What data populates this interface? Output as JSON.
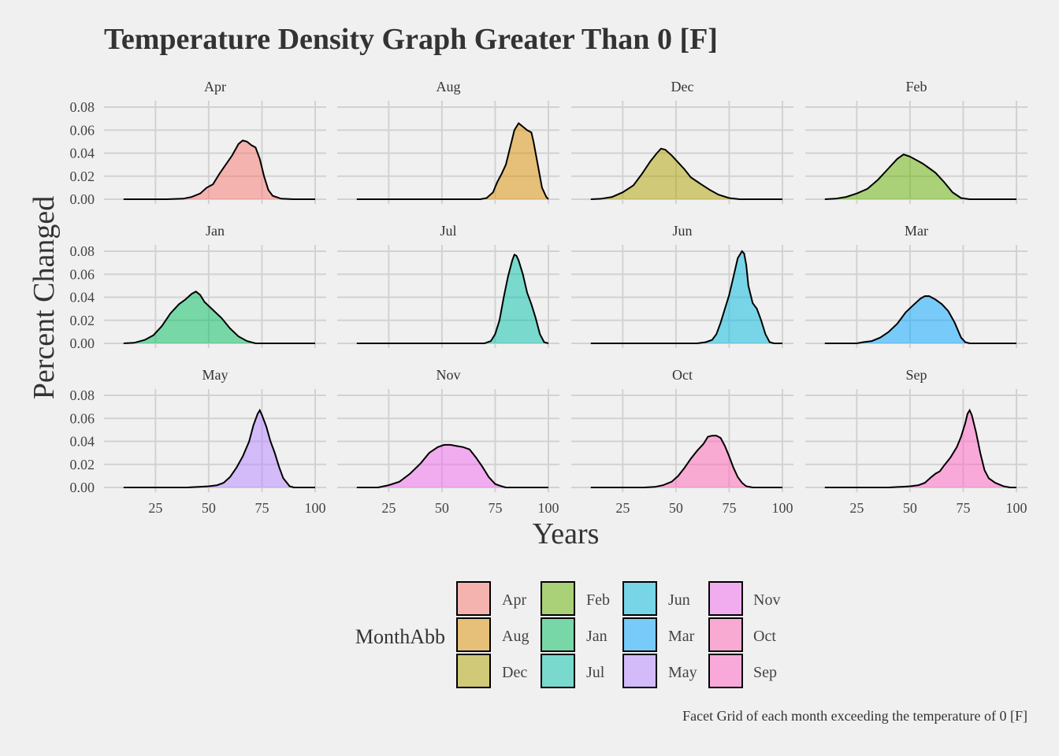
{
  "chart_data": {
    "type": "area",
    "title": "Temperature Density Graph Greater Than 0 [F]",
    "xlabel": "Years",
    "ylabel": "Percent Changed",
    "caption": "Facet Grid of each month exceeding the temperature of 0 [F]",
    "xlim": [
      6,
      100
    ],
    "ylim": [
      0,
      0.08
    ],
    "x_ticks": [
      25,
      50,
      75,
      100
    ],
    "y_ticks": [
      0.0,
      0.02,
      0.04,
      0.06,
      0.08
    ],
    "y_tick_labels": [
      "0.00",
      "0.02",
      "0.04",
      "0.06",
      "0.08"
    ],
    "grid": true,
    "legend": {
      "title": "MonthAbb",
      "placement": "bottom",
      "entries": [
        "Apr",
        "Aug",
        "Dec",
        "Feb",
        "Jan",
        "Jul",
        "Jun",
        "Mar",
        "May",
        "Nov",
        "Oct",
        "Sep"
      ]
    },
    "panels": [
      {
        "name": "Apr",
        "color": "#F8766D",
        "points": [
          [
            10,
            0
          ],
          [
            30,
            0
          ],
          [
            38,
            0.0005
          ],
          [
            42,
            0.002
          ],
          [
            46,
            0.005
          ],
          [
            49,
            0.01
          ],
          [
            52,
            0.013
          ],
          [
            55,
            0.022
          ],
          [
            58,
            0.03
          ],
          [
            61,
            0.038
          ],
          [
            64,
            0.048
          ],
          [
            66,
            0.051
          ],
          [
            68,
            0.05
          ],
          [
            70,
            0.047
          ],
          [
            72,
            0.045
          ],
          [
            74,
            0.035
          ],
          [
            76,
            0.02
          ],
          [
            78,
            0.008
          ],
          [
            80,
            0.003
          ],
          [
            84,
            0.0005
          ],
          [
            90,
            0
          ],
          [
            100,
            0
          ]
        ]
      },
      {
        "name": "Aug",
        "color": "#DB8E00",
        "points": [
          [
            10,
            0
          ],
          [
            68,
            0
          ],
          [
            71,
            0.001
          ],
          [
            74,
            0.006
          ],
          [
            76,
            0.015
          ],
          [
            78,
            0.022
          ],
          [
            80,
            0.03
          ],
          [
            82,
            0.045
          ],
          [
            84,
            0.06
          ],
          [
            86,
            0.066
          ],
          [
            88,
            0.063
          ],
          [
            90,
            0.06
          ],
          [
            92,
            0.058
          ],
          [
            93,
            0.05
          ],
          [
            95,
            0.03
          ],
          [
            97,
            0.01
          ],
          [
            99,
            0.002
          ],
          [
            100,
            0
          ]
        ]
      },
      {
        "name": "Dec",
        "color": "#AEA200",
        "points": [
          [
            10,
            0
          ],
          [
            15,
            0.0005
          ],
          [
            20,
            0.002
          ],
          [
            25,
            0.006
          ],
          [
            30,
            0.012
          ],
          [
            34,
            0.022
          ],
          [
            38,
            0.033
          ],
          [
            41,
            0.04
          ],
          [
            43,
            0.044
          ],
          [
            45,
            0.043
          ],
          [
            48,
            0.038
          ],
          [
            51,
            0.032
          ],
          [
            54,
            0.026
          ],
          [
            57,
            0.019
          ],
          [
            61,
            0.014
          ],
          [
            66,
            0.008
          ],
          [
            70,
            0.004
          ],
          [
            75,
            0.001
          ],
          [
            80,
            0
          ],
          [
            100,
            0
          ]
        ]
      },
      {
        "name": "Feb",
        "color": "#64B200",
        "points": [
          [
            10,
            0
          ],
          [
            15,
            0.0005
          ],
          [
            20,
            0.002
          ],
          [
            25,
            0.005
          ],
          [
            30,
            0.009
          ],
          [
            35,
            0.017
          ],
          [
            40,
            0.027
          ],
          [
            44,
            0.035
          ],
          [
            47,
            0.039
          ],
          [
            50,
            0.037
          ],
          [
            53,
            0.034
          ],
          [
            56,
            0.031
          ],
          [
            59,
            0.027
          ],
          [
            62,
            0.023
          ],
          [
            66,
            0.015
          ],
          [
            70,
            0.006
          ],
          [
            74,
            0.001
          ],
          [
            78,
            0
          ],
          [
            100,
            0
          ]
        ]
      },
      {
        "name": "Jan",
        "color": "#00BD5C",
        "points": [
          [
            10,
            0
          ],
          [
            15,
            0.0005
          ],
          [
            20,
            0.003
          ],
          [
            24,
            0.007
          ],
          [
            28,
            0.015
          ],
          [
            32,
            0.026
          ],
          [
            36,
            0.034
          ],
          [
            39,
            0.038
          ],
          [
            42,
            0.043
          ],
          [
            44,
            0.045
          ],
          [
            46,
            0.042
          ],
          [
            48,
            0.036
          ],
          [
            52,
            0.029
          ],
          [
            56,
            0.022
          ],
          [
            60,
            0.013
          ],
          [
            64,
            0.006
          ],
          [
            68,
            0.002
          ],
          [
            72,
            0
          ],
          [
            100,
            0
          ]
        ]
      },
      {
        "name": "Jul",
        "color": "#00C1A7",
        "points": [
          [
            10,
            0
          ],
          [
            70,
            0
          ],
          [
            73,
            0.002
          ],
          [
            75,
            0.008
          ],
          [
            77,
            0.02
          ],
          [
            79,
            0.04
          ],
          [
            81,
            0.058
          ],
          [
            83,
            0.072
          ],
          [
            84,
            0.077
          ],
          [
            85,
            0.076
          ],
          [
            86,
            0.072
          ],
          [
            88,
            0.06
          ],
          [
            90,
            0.044
          ],
          [
            92,
            0.034
          ],
          [
            94,
            0.022
          ],
          [
            96,
            0.008
          ],
          [
            98,
            0.001
          ],
          [
            100,
            0
          ]
        ]
      },
      {
        "name": "Jun",
        "color": "#00BADE",
        "points": [
          [
            10,
            0
          ],
          [
            60,
            0
          ],
          [
            64,
            0.001
          ],
          [
            67,
            0.003
          ],
          [
            69,
            0.008
          ],
          [
            71,
            0.018
          ],
          [
            73,
            0.03
          ],
          [
            75,
            0.042
          ],
          [
            77,
            0.058
          ],
          [
            79,
            0.074
          ],
          [
            81,
            0.08
          ],
          [
            82,
            0.078
          ],
          [
            83,
            0.068
          ],
          [
            84,
            0.05
          ],
          [
            86,
            0.035
          ],
          [
            88,
            0.03
          ],
          [
            90,
            0.02
          ],
          [
            92,
            0.008
          ],
          [
            94,
            0.001
          ],
          [
            96,
            0
          ],
          [
            100,
            0
          ]
        ]
      },
      {
        "name": "Mar",
        "color": "#00A6FF",
        "points": [
          [
            10,
            0
          ],
          [
            25,
            0
          ],
          [
            28,
            0.001
          ],
          [
            32,
            0.002
          ],
          [
            36,
            0.005
          ],
          [
            40,
            0.01
          ],
          [
            44,
            0.017
          ],
          [
            48,
            0.027
          ],
          [
            52,
            0.034
          ],
          [
            55,
            0.039
          ],
          [
            57,
            0.041
          ],
          [
            59,
            0.041
          ],
          [
            62,
            0.038
          ],
          [
            65,
            0.034
          ],
          [
            68,
            0.028
          ],
          [
            71,
            0.018
          ],
          [
            74,
            0.005
          ],
          [
            76,
            0.001
          ],
          [
            78,
            0
          ],
          [
            100,
            0
          ]
        ]
      },
      {
        "name": "May",
        "color": "#B385FF",
        "points": [
          [
            10,
            0
          ],
          [
            40,
            0
          ],
          [
            45,
            0.0005
          ],
          [
            50,
            0.001
          ],
          [
            54,
            0.002
          ],
          [
            57,
            0.004
          ],
          [
            60,
            0.009
          ],
          [
            63,
            0.017
          ],
          [
            66,
            0.027
          ],
          [
            69,
            0.04
          ],
          [
            71,
            0.054
          ],
          [
            73,
            0.064
          ],
          [
            74,
            0.067
          ],
          [
            75,
            0.063
          ],
          [
            77,
            0.053
          ],
          [
            79,
            0.04
          ],
          [
            81,
            0.03
          ],
          [
            83,
            0.018
          ],
          [
            85,
            0.008
          ],
          [
            88,
            0.001
          ],
          [
            90,
            0
          ],
          [
            100,
            0
          ]
        ]
      },
      {
        "name": "Nov",
        "color": "#EF67EB",
        "points": [
          [
            10,
            0
          ],
          [
            20,
            0
          ],
          [
            25,
            0.002
          ],
          [
            30,
            0.005
          ],
          [
            35,
            0.012
          ],
          [
            40,
            0.021
          ],
          [
            44,
            0.03
          ],
          [
            48,
            0.035
          ],
          [
            51,
            0.037
          ],
          [
            54,
            0.037
          ],
          [
            57,
            0.036
          ],
          [
            60,
            0.035
          ],
          [
            63,
            0.033
          ],
          [
            66,
            0.026
          ],
          [
            69,
            0.018
          ],
          [
            72,
            0.009
          ],
          [
            75,
            0.003
          ],
          [
            78,
            0.001
          ],
          [
            80,
            0
          ],
          [
            100,
            0
          ]
        ]
      },
      {
        "name": "Oct",
        "color": "#FF63B6",
        "points": [
          [
            10,
            0
          ],
          [
            35,
            0
          ],
          [
            40,
            0.0005
          ],
          [
            44,
            0.002
          ],
          [
            48,
            0.005
          ],
          [
            51,
            0.01
          ],
          [
            54,
            0.017
          ],
          [
            57,
            0.025
          ],
          [
            60,
            0.032
          ],
          [
            63,
            0.038
          ],
          [
            65,
            0.044
          ],
          [
            67,
            0.045
          ],
          [
            69,
            0.045
          ],
          [
            71,
            0.043
          ],
          [
            73,
            0.036
          ],
          [
            75,
            0.027
          ],
          [
            77,
            0.017
          ],
          [
            79,
            0.009
          ],
          [
            81,
            0.004
          ],
          [
            83,
            0.001
          ],
          [
            86,
            0
          ],
          [
            100,
            0
          ]
        ]
      },
      {
        "name": "Sep",
        "color": "#FF61C3",
        "points": [
          [
            10,
            0
          ],
          [
            40,
            0
          ],
          [
            45,
            0.0005
          ],
          [
            50,
            0.001
          ],
          [
            54,
            0.002
          ],
          [
            57,
            0.004
          ],
          [
            60,
            0.009
          ],
          [
            62,
            0.012
          ],
          [
            64,
            0.014
          ],
          [
            66,
            0.019
          ],
          [
            69,
            0.026
          ],
          [
            72,
            0.035
          ],
          [
            74,
            0.044
          ],
          [
            76,
            0.056
          ],
          [
            77,
            0.064
          ],
          [
            78,
            0.067
          ],
          [
            79,
            0.063
          ],
          [
            81,
            0.048
          ],
          [
            83,
            0.03
          ],
          [
            85,
            0.015
          ],
          [
            87,
            0.008
          ],
          [
            90,
            0.004
          ],
          [
            94,
            0.001
          ],
          [
            97,
            0
          ],
          [
            100,
            0
          ]
        ]
      }
    ]
  }
}
